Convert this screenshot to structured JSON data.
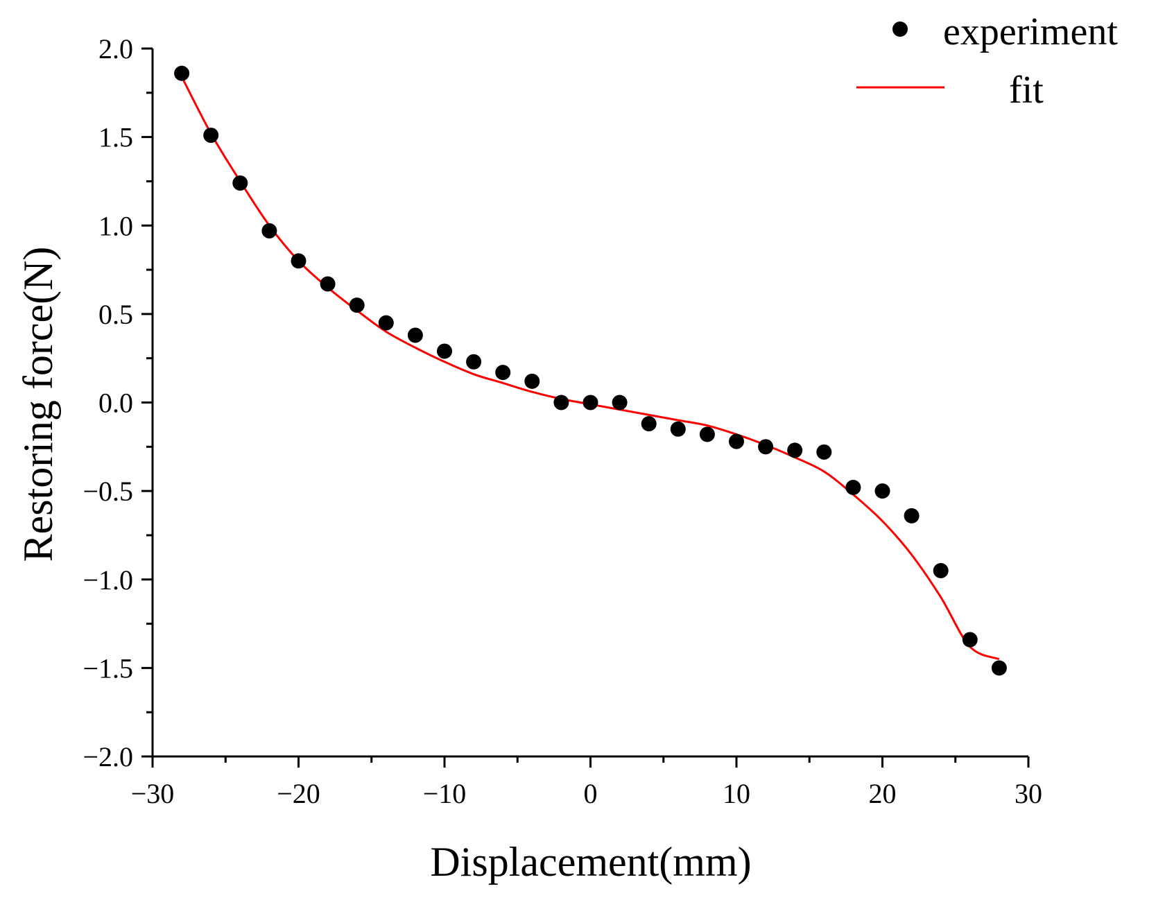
{
  "chart_data": {
    "type": "scatter",
    "title": "",
    "xlabel": "Displacement(mm)",
    "ylabel": "Restoring force(N)",
    "xlim": [
      -30,
      30
    ],
    "ylim": [
      -2.0,
      2.0
    ],
    "x_ticks": [
      -30,
      -20,
      -10,
      0,
      10,
      20,
      30
    ],
    "x_tick_labels": [
      "−30",
      "−20",
      "−10",
      "0",
      "10",
      "20",
      "30"
    ],
    "y_ticks": [
      -2.0,
      -1.5,
      -1.0,
      -0.5,
      0.0,
      0.5,
      1.0,
      1.5,
      2.0
    ],
    "y_tick_labels": [
      "−2.0",
      "−1.5",
      "−1.0",
      "−0.5",
      "0.0",
      "0.5",
      "1.0",
      "1.5",
      "2.0"
    ],
    "grid": false,
    "legend_position": "top-right",
    "series": [
      {
        "name": "experiment",
        "kind": "scatter",
        "color": "#000000",
        "x": [
          -28,
          -26,
          -24,
          -22,
          -20,
          -18,
          -16,
          -14,
          -12,
          -10,
          -8,
          -6,
          -4,
          -2,
          0,
          2,
          4,
          6,
          8,
          10,
          12,
          14,
          16,
          18,
          20,
          22,
          24,
          26,
          28
        ],
        "y": [
          1.86,
          1.51,
          1.24,
          0.97,
          0.8,
          0.67,
          0.55,
          0.45,
          0.38,
          0.29,
          0.23,
          0.17,
          0.12,
          0.0,
          0.0,
          0.0,
          -0.12,
          -0.15,
          -0.18,
          -0.22,
          -0.25,
          -0.27,
          -0.28,
          -0.48,
          -0.5,
          -0.64,
          -0.95,
          -1.34,
          -1.5
        ]
      },
      {
        "name": "fit",
        "kind": "line",
        "color": "#ff0000",
        "x": [
          -28,
          -26,
          -24,
          -22,
          -20,
          -18,
          -16,
          -14,
          -12,
          -10,
          -8,
          -6,
          -4,
          -2,
          0,
          2,
          4,
          6,
          8,
          10,
          12,
          14,
          16,
          18,
          20,
          22,
          24,
          26,
          28
        ],
        "y": [
          1.84,
          1.52,
          1.25,
          1.0,
          0.8,
          0.65,
          0.52,
          0.4,
          0.31,
          0.23,
          0.16,
          0.11,
          0.06,
          0.02,
          -0.01,
          -0.04,
          -0.07,
          -0.1,
          -0.13,
          -0.18,
          -0.24,
          -0.31,
          -0.39,
          -0.52,
          -0.67,
          -0.86,
          -1.1,
          -1.38,
          -1.45
        ]
      }
    ]
  }
}
